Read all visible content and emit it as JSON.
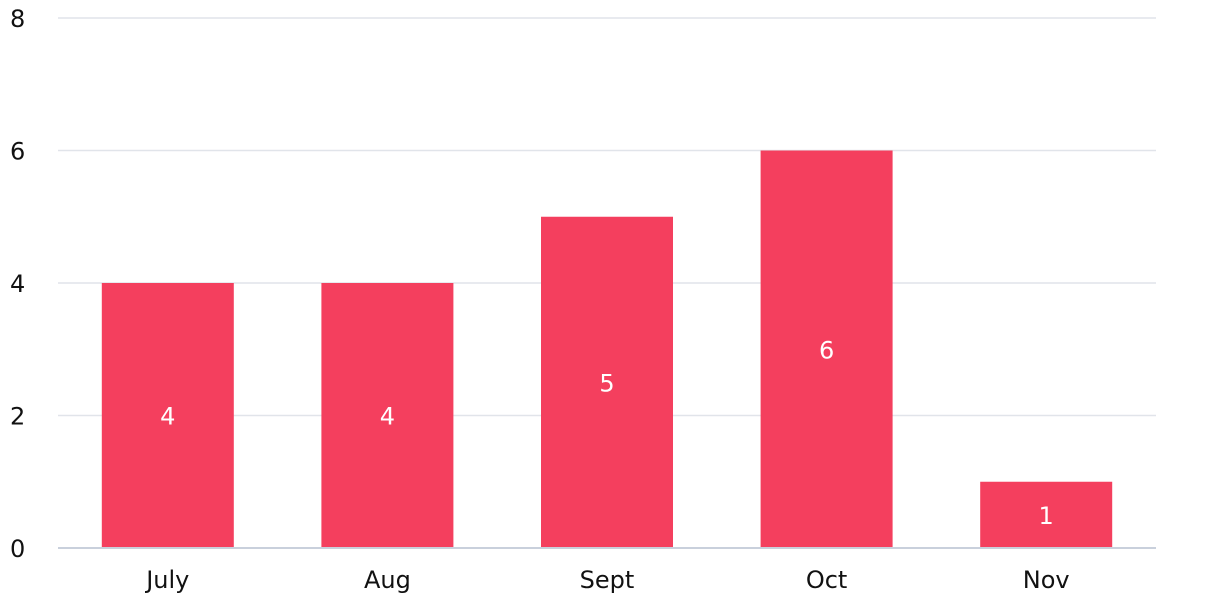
{
  "chart_data": {
    "type": "bar",
    "categories": [
      "July",
      "Aug",
      "Sept",
      "Oct",
      "Nov"
    ],
    "values": [
      4,
      4,
      5,
      6,
      1
    ],
    "yticks": [
      0,
      2,
      4,
      6,
      8
    ],
    "ylim": [
      0,
      8
    ],
    "grid": true,
    "data_labels": true,
    "colors": {
      "bar": "#f43f5e",
      "bar_label": "#ffffff",
      "grid": "#e1e4ea",
      "axis": "#c9d0dc",
      "text": "#111111"
    }
  }
}
